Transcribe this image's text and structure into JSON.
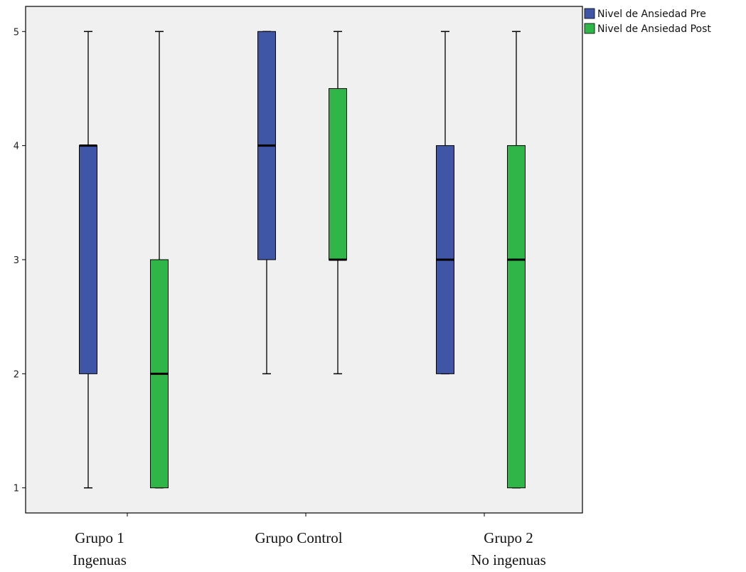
{
  "chart_data": {
    "type": "boxplot",
    "title": "",
    "xlabel": "",
    "ylabel": "",
    "ylim": [
      0.78,
      5.22
    ],
    "yticks": [
      1,
      2,
      3,
      4,
      5
    ],
    "grid": false,
    "legend_position": "top-right outside plot",
    "categories": [
      {
        "line1": "Grupo 1",
        "line2": "Ingenuas"
      },
      {
        "line1": "Grupo Control",
        "line2": ""
      },
      {
        "line1": "Grupo 2",
        "line2": "No ingenuas"
      }
    ],
    "series": [
      {
        "name": "Nivel de Ansiedad Pre",
        "color": "#3f55a6",
        "boxes": [
          {
            "min": 1,
            "q1": 2,
            "median": 4,
            "q3": 4,
            "max": 5
          },
          {
            "min": 2,
            "q1": 3,
            "median": 4,
            "q3": 5,
            "max": 5
          },
          {
            "min": 2,
            "q1": 2,
            "median": 3,
            "q3": 4,
            "max": 5
          }
        ]
      },
      {
        "name": "Nivel de Ansiedad Post",
        "color": "#2fb548",
        "boxes": [
          {
            "min": 1,
            "q1": 1,
            "median": 2,
            "q3": 3,
            "max": 5
          },
          {
            "min": 2,
            "q1": 3,
            "median": 3,
            "q3": 4.5,
            "max": 5
          },
          {
            "min": 1,
            "q1": 1,
            "median": 3,
            "q3": 4,
            "max": 5
          }
        ]
      }
    ]
  },
  "colors": {
    "plot_background": "#f0f0f0",
    "axis": "#000000"
  }
}
